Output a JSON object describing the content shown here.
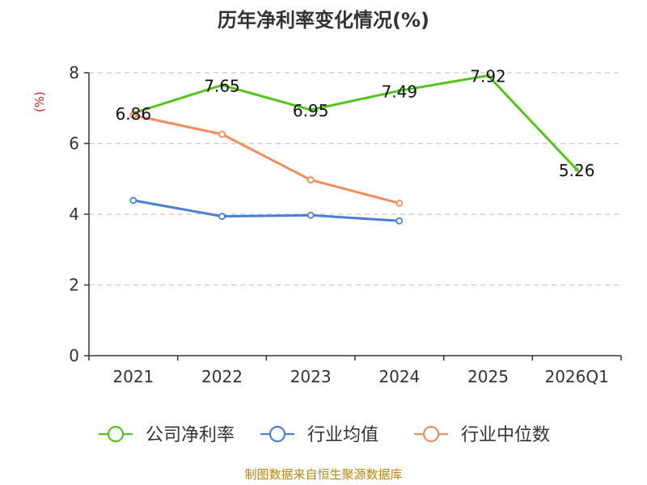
{
  "chart_data": {
    "type": "line",
    "title": "历年净利率变化情况(%)",
    "ylabel": "(%)",
    "xlabel": "",
    "categories": [
      "2021",
      "2022",
      "2023",
      "2024",
      "2025",
      "2026Q1"
    ],
    "ylim": [
      0,
      8
    ],
    "yticks": [
      0,
      2,
      4,
      6,
      8
    ],
    "grid": true,
    "legend_position": "bottom",
    "series": [
      {
        "name": "公司净利率",
        "color": "#52c41a",
        "values": [
          6.86,
          7.65,
          6.95,
          7.49,
          7.92,
          5.26
        ],
        "labels": [
          "6.86",
          "7.65",
          "6.95",
          "7.49",
          "7.92",
          "5.26"
        ],
        "show_labels": true,
        "hollow_markers": false
      },
      {
        "name": "行业均值",
        "color": "#4a7fd8",
        "values": [
          4.39,
          3.94,
          3.97,
          3.81,
          null,
          null
        ],
        "show_labels": false,
        "hollow_markers": true
      },
      {
        "name": "行业中位数",
        "color": "#f28c5a",
        "values": [
          6.8,
          6.26,
          4.97,
          4.31,
          null,
          null
        ],
        "show_labels": false,
        "hollow_markers": true
      }
    ]
  },
  "source": "制图数据来自恒生聚源数据库"
}
